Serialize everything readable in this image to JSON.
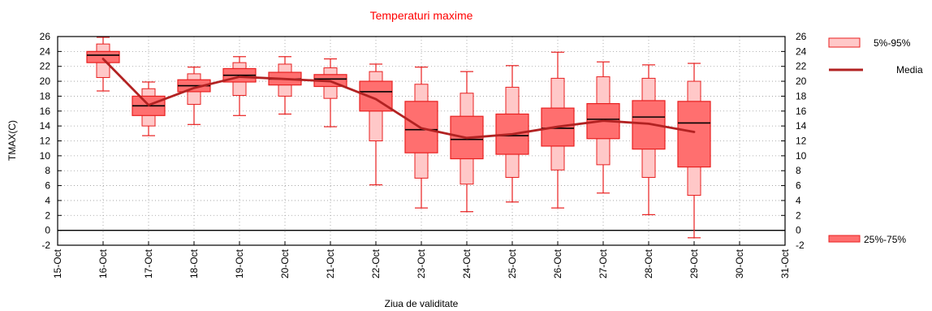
{
  "chart_data": {
    "type": "box",
    "title": "Temperaturi maxime",
    "xlabel": "Ziua de validitate",
    "ylabel": "TMAX(C)",
    "ylim": [
      -2,
      26
    ],
    "yticks": [
      -2,
      0,
      2,
      4,
      6,
      8,
      10,
      12,
      14,
      16,
      18,
      20,
      22,
      24,
      26
    ],
    "x_tick_labels": [
      "15-Oct",
      "16-Oct",
      "17-Oct",
      "18-Oct",
      "19-Oct",
      "20-Oct",
      "21-Oct",
      "22-Oct",
      "23-Oct",
      "24-Oct",
      "25-Oct",
      "26-Oct",
      "27-Oct",
      "28-Oct",
      "29-Oct",
      "30-Oct",
      "31-Oct"
    ],
    "grid": true,
    "legend_placement": "right",
    "colors": {
      "title": "#ff0000",
      "box_inner": "#ff6f6f",
      "box_outer": "#ffc8c8",
      "edge": "#e82020",
      "mean_line": "#b22222",
      "median": "#000000"
    },
    "legend": [
      {
        "label": "5%-95%"
      },
      {
        "label": "Media"
      },
      {
        "label": "25%-75%"
      }
    ],
    "boxes": [
      {
        "day": "16-Oct",
        "min": 18.7,
        "p5": 20.5,
        "p25": 22.5,
        "median": 23.5,
        "p75": 24.0,
        "p95": 25.0,
        "max": 25.9
      },
      {
        "day": "17-Oct",
        "min": 12.7,
        "p5": 14.0,
        "p25": 15.4,
        "median": 16.7,
        "p75": 18.0,
        "p95": 19.0,
        "max": 19.9
      },
      {
        "day": "18-Oct",
        "min": 14.2,
        "p5": 16.9,
        "p25": 18.6,
        "median": 19.4,
        "p75": 20.2,
        "p95": 21.0,
        "max": 21.9
      },
      {
        "day": "19-Oct",
        "min": 15.4,
        "p5": 18.1,
        "p25": 19.9,
        "median": 20.8,
        "p75": 21.7,
        "p95": 22.5,
        "max": 23.3
      },
      {
        "day": "20-Oct",
        "min": 15.6,
        "p5": 18.0,
        "p25": 19.5,
        "median": 20.3,
        "p75": 21.2,
        "p95": 22.3,
        "max": 23.3
      },
      {
        "day": "21-Oct",
        "min": 13.9,
        "p5": 17.7,
        "p25": 19.3,
        "median": 20.3,
        "p75": 20.9,
        "p95": 21.8,
        "max": 23.0
      },
      {
        "day": "22-Oct",
        "min": 6.1,
        "p5": 12.0,
        "p25": 16.0,
        "median": 18.6,
        "p75": 20.0,
        "p95": 21.3,
        "max": 22.3
      },
      {
        "day": "23-Oct",
        "min": 3.0,
        "p5": 7.0,
        "p25": 10.4,
        "median": 13.5,
        "p75": 17.3,
        "p95": 19.6,
        "max": 21.9
      },
      {
        "day": "24-Oct",
        "min": 2.5,
        "p5": 6.2,
        "p25": 9.6,
        "median": 12.2,
        "p75": 15.3,
        "p95": 18.4,
        "max": 21.3
      },
      {
        "day": "25-Oct",
        "min": 3.8,
        "p5": 7.1,
        "p25": 10.2,
        "median": 12.7,
        "p75": 15.6,
        "p95": 19.2,
        "max": 22.1
      },
      {
        "day": "26-Oct",
        "min": 3.0,
        "p5": 8.1,
        "p25": 11.3,
        "median": 13.7,
        "p75": 16.4,
        "p95": 20.4,
        "max": 23.9
      },
      {
        "day": "27-Oct",
        "min": 5.0,
        "p5": 8.8,
        "p25": 12.3,
        "median": 14.9,
        "p75": 17.0,
        "p95": 20.6,
        "max": 22.6
      },
      {
        "day": "28-Oct",
        "min": 2.1,
        "p5": 7.1,
        "p25": 10.9,
        "median": 15.2,
        "p75": 17.4,
        "p95": 20.4,
        "max": 22.2
      },
      {
        "day": "29-Oct",
        "min": -1.0,
        "p5": 4.7,
        "p25": 8.5,
        "median": 14.4,
        "p75": 17.3,
        "p95": 20.0,
        "max": 22.4
      }
    ],
    "mean": [
      {
        "day": "16-Oct",
        "value": 23.0
      },
      {
        "day": "17-Oct",
        "value": 16.8
      },
      {
        "day": "18-Oct",
        "value": 19.1
      },
      {
        "day": "19-Oct",
        "value": 20.6
      },
      {
        "day": "20-Oct",
        "value": 20.3
      },
      {
        "day": "21-Oct",
        "value": 20.0
      },
      {
        "day": "22-Oct",
        "value": 17.6
      },
      {
        "day": "23-Oct",
        "value": 13.7
      },
      {
        "day": "24-Oct",
        "value": 12.4
      },
      {
        "day": "25-Oct",
        "value": 12.9
      },
      {
        "day": "26-Oct",
        "value": 13.9
      },
      {
        "day": "27-Oct",
        "value": 14.7
      },
      {
        "day": "28-Oct",
        "value": 14.3
      },
      {
        "day": "29-Oct",
        "value": 13.2
      }
    ]
  }
}
